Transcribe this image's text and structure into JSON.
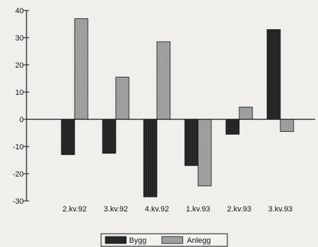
{
  "chart_data": {
    "type": "bar",
    "categories": [
      "2.kv.92",
      "3.kv.92",
      "4.kv.92",
      "1.kv.93",
      "2.kv.93",
      "3.kv.93"
    ],
    "series": [
      {
        "name": "Bygg",
        "color": "#222222",
        "values": [
          -13,
          -12.5,
          -28.5,
          -17,
          -5.5,
          33
        ]
      },
      {
        "name": "Anlegg",
        "color": "#a6a6a6",
        "values": [
          37,
          15.5,
          28.5,
          -24.5,
          4.5,
          -4.5
        ]
      }
    ],
    "ylim": [
      -30,
      40
    ],
    "yticks": [
      -30,
      -20,
      -10,
      0,
      10,
      20,
      30,
      40
    ],
    "grid": false,
    "legend_position": "bottom-center"
  }
}
